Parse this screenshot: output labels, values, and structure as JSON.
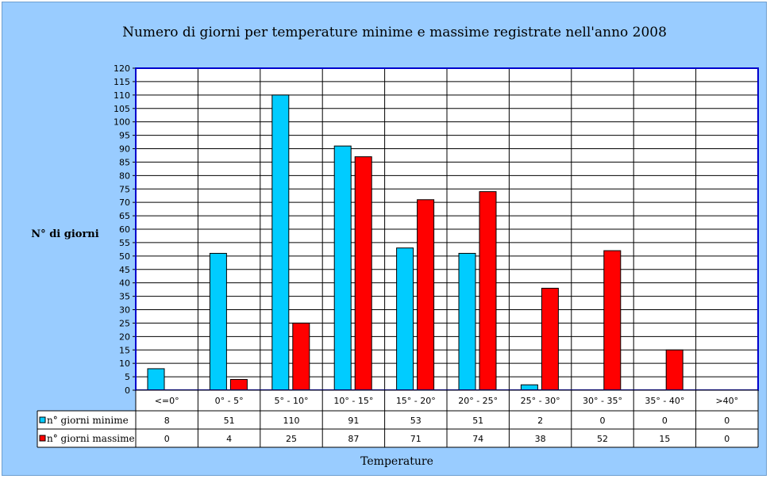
{
  "colors": {
    "background": "#99ccff",
    "plot_area": "#ffffff",
    "series_min": "#00ccff",
    "series_max": "#ff0000",
    "axis": "#0000cc"
  },
  "chart_data": {
    "type": "bar",
    "title": "Numero di giorni per temperature minime e massime registrate nell'anno 2008",
    "xlabel": "Temperature",
    "ylabel": "N° di giorni",
    "ylim": [
      0,
      120
    ],
    "ytick_step": 5,
    "yticks": [
      "0",
      "5",
      "10",
      "15",
      "20",
      "25",
      "30",
      "35",
      "40",
      "45",
      "50",
      "55",
      "60",
      "65",
      "70",
      "75",
      "80",
      "85",
      "90",
      "95",
      "100",
      "105",
      "110",
      "115",
      "120"
    ],
    "grid": true,
    "legend": "data-table",
    "categories": [
      "<=0°",
      "0° - 5°",
      "5° - 10°",
      "10° - 15°",
      "15° - 20°",
      "20° - 25°",
      "25° - 30°",
      "30° - 35°",
      "35° - 40°",
      ">40°"
    ],
    "series": [
      {
        "name": "n° giorni minime",
        "values": [
          8,
          51,
          110,
          91,
          53,
          51,
          2,
          0,
          0,
          0
        ]
      },
      {
        "name": "n° giorni massime",
        "values": [
          0,
          4,
          25,
          87,
          71,
          74,
          38,
          52,
          15,
          0
        ]
      }
    ]
  }
}
